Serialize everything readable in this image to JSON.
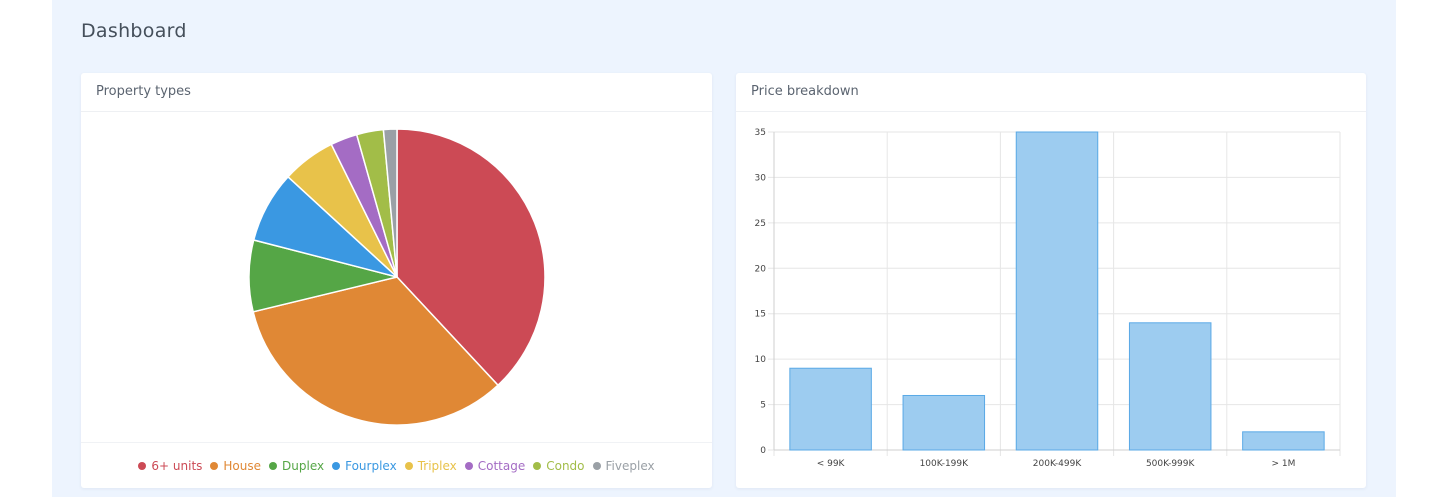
{
  "page": {
    "title": "Dashboard"
  },
  "pie_card": {
    "title": "Property types"
  },
  "bar_card": {
    "title": "Price breakdown"
  },
  "chart_data": [
    {
      "type": "pie",
      "title": "",
      "categories": [
        "6+ units",
        "House",
        "Duplex",
        "Fourplex",
        "Triplex",
        "Cottage",
        "Condo",
        "Fiveplex"
      ],
      "values": [
        39,
        34,
        8,
        8,
        6,
        3,
        3,
        1.5
      ],
      "colors": [
        "#cc4a55",
        "#e08835",
        "#55a646",
        "#3a98e2",
        "#e8c24a",
        "#a46cc4",
        "#a2bd48",
        "#9aa0a6"
      ],
      "legend": "bottom"
    },
    {
      "type": "bar",
      "title": "",
      "categories": [
        "< 99K",
        "100K-199K",
        "200K-499K",
        "500K-999K",
        "> 1M"
      ],
      "values": [
        9,
        6,
        35,
        14,
        2
      ],
      "xlabel": "",
      "ylabel": "",
      "ylim": [
        0,
        35
      ],
      "yticks": [
        "0",
        "5",
        "10",
        "15",
        "20",
        "25",
        "30",
        "35"
      ],
      "bar_color": "#9dccf0",
      "bar_edge_color": "#5aa9e6",
      "grid": true
    }
  ]
}
